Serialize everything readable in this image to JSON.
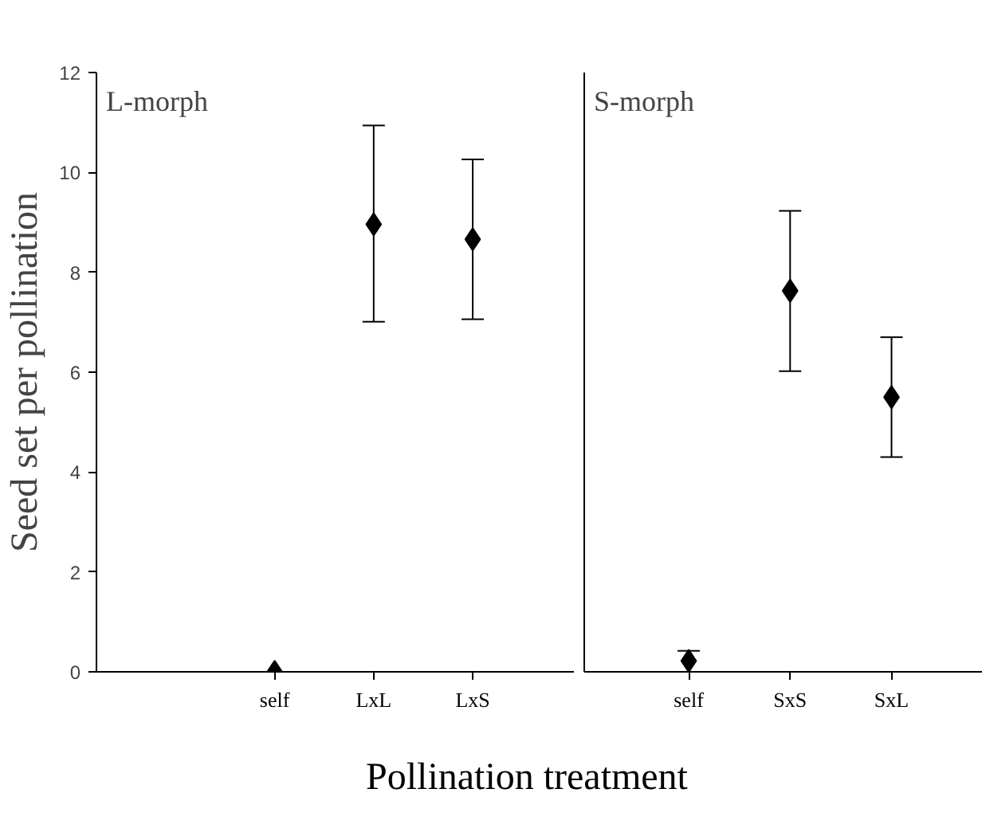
{
  "chart_data": [
    {
      "type": "scatter",
      "title": "L-morph",
      "ylabel": "Seed set per pollination",
      "xlabel": "Pollination treatment",
      "categories": [
        "self",
        "LxL",
        "LxS"
      ],
      "series": [
        {
          "color": "#000000",
          "values": [
            0,
            8.96,
            8.66
          ],
          "errors": [
            null,
            [
              7.01,
              10.94
            ],
            [
              7.06,
              10.26
            ]
          ]
        }
      ],
      "marker": "diamond",
      "ylim": [
        0,
        12
      ],
      "yticks": [
        0,
        2,
        4,
        6,
        8,
        10,
        12
      ]
    },
    {
      "type": "scatter",
      "title": "S-morph",
      "categories": [
        "self",
        "SxS",
        "SxL"
      ],
      "series": [
        {
          "color": "#000000",
          "values": [
            0.22,
            7.63,
            5.5
          ],
          "errors": [
            [
              0,
              0.42
            ],
            [
              6.02,
              9.23
            ],
            [
              4.3,
              6.7
            ]
          ]
        }
      ],
      "marker": "diamond",
      "ylim": [
        0,
        12
      ],
      "yticks": [
        0,
        2,
        4,
        6,
        8,
        10,
        12
      ],
      "tick_labels": "x"
    }
  ]
}
